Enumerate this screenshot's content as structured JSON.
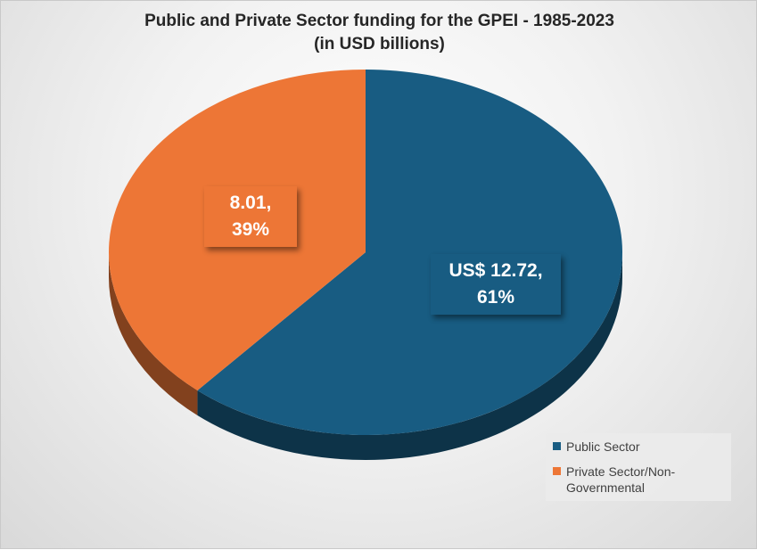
{
  "chart_data": {
    "type": "pie",
    "title": "Public and Private Sector funding for the GPEI - 1985-2023",
    "subtitle": "(in USD billions)",
    "slices": [
      {
        "name": "Public Sector",
        "value": 12.72,
        "percent": 61,
        "label_line1": "US$ 12.72,",
        "label_line2": "61%",
        "color": "#185c82"
      },
      {
        "name": "Private Sector/Non-Governmental",
        "value": 8.01,
        "percent": 39,
        "label_line1": "8.01,",
        "label_line2": "39%",
        "color": "#ed7636"
      }
    ],
    "legend": {
      "position": "bottom-right",
      "items": [
        {
          "label_line1": "Public Sector",
          "label_line2": "",
          "color": "#185c82"
        },
        {
          "label_line1": "Private Sector/Non-",
          "label_line2": "Governmental",
          "color": "#ed7636"
        }
      ]
    }
  }
}
